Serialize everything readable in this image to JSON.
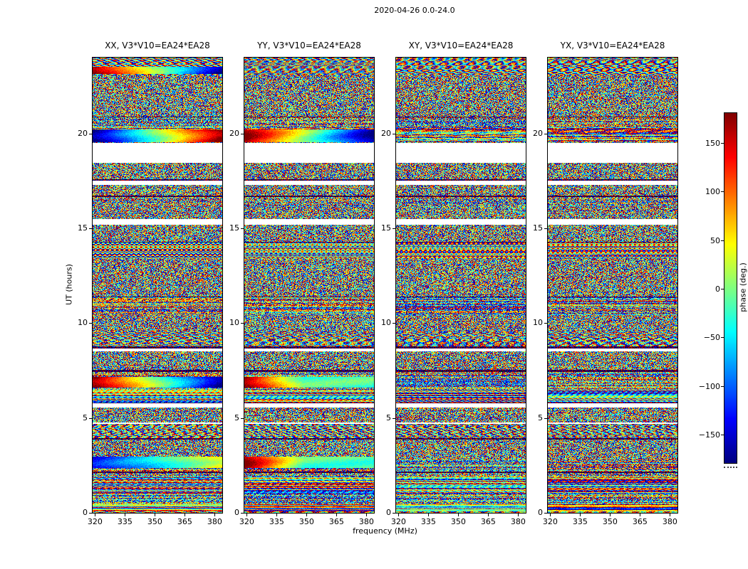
{
  "chart_data": {
    "type": "heatmap",
    "title": "2020-04-26 0.0-24.0",
    "xlabel": "frequency (MHz)",
    "ylabel": "UT (hours)",
    "x_range": [
      318.8,
      383.8
    ],
    "x_ticks": [
      320,
      335,
      350,
      365,
      380
    ],
    "y_range": [
      0,
      24
    ],
    "y_ticks": [
      0,
      5,
      10,
      15,
      20
    ],
    "baseline": "V3*V10=EA24*EA28",
    "panels": [
      {
        "title": "XX, V3*V10=EA24*EA28",
        "polarization": "XX"
      },
      {
        "title": "YY, V3*V10=EA24*EA28",
        "polarization": "YY"
      },
      {
        "title": "XY, V3*V10=EA24*EA28",
        "polarization": "XY"
      },
      {
        "title": "YX, V3*V10=EA24*EA28",
        "polarization": "YX"
      }
    ],
    "colorbar": {
      "label": "phase (deg.)",
      "range": [
        -180,
        180
      ],
      "ticks": [
        150,
        100,
        50,
        0,
        -50,
        -100,
        -150
      ],
      "colormap": "jet"
    },
    "description": "Visibility phase versus frequency (320-380 MHz) and time (0-24 h UT) waterfall plots for baseline V3*V10=EA24*EA28 for the four polarization products XX, YY, XY, YX. Phase is noise-like over most of the track, arranged in horizontal scan bands separated by thin flagged (white) rows and dark rows; a wide flagged gap appears near UT 19, and smooth frequency-dependent phase ramps are visible in XX and YY near UT 20, UT 7 and UT 2.5-3.5.",
    "flagged_ut_ranges": [
      [
        18.45,
        19.5
      ]
    ],
    "notable_features": [
      {
        "panel": 0,
        "ut_start": 19.55,
        "ut_end": 20.2,
        "pattern": "phase-ramp-blue-to-red"
      },
      {
        "panel": 1,
        "ut_start": 19.55,
        "ut_end": 20.2,
        "pattern": "phase-ramp-red-to-blue"
      },
      {
        "panel": 0,
        "ut_start": 6.6,
        "ut_end": 7.15,
        "pattern": "phase-ramp-red-to-blue"
      },
      {
        "panel": 1,
        "ut_start": 6.6,
        "ut_end": 7.15,
        "pattern": "phase-ramp-red-to-cyan"
      },
      {
        "panel": 1,
        "ut_start": 2.35,
        "ut_end": 2.95,
        "pattern": "phase-ramp-red-to-cyan"
      },
      {
        "panel": 0,
        "ut_start": 2.35,
        "ut_end": 2.95,
        "pattern": "phase-ramp-blue-to-green"
      },
      {
        "panel": 0,
        "ut_start": 23.15,
        "ut_end": 23.5,
        "pattern": "phase-ramp-red-to-blue"
      }
    ]
  }
}
